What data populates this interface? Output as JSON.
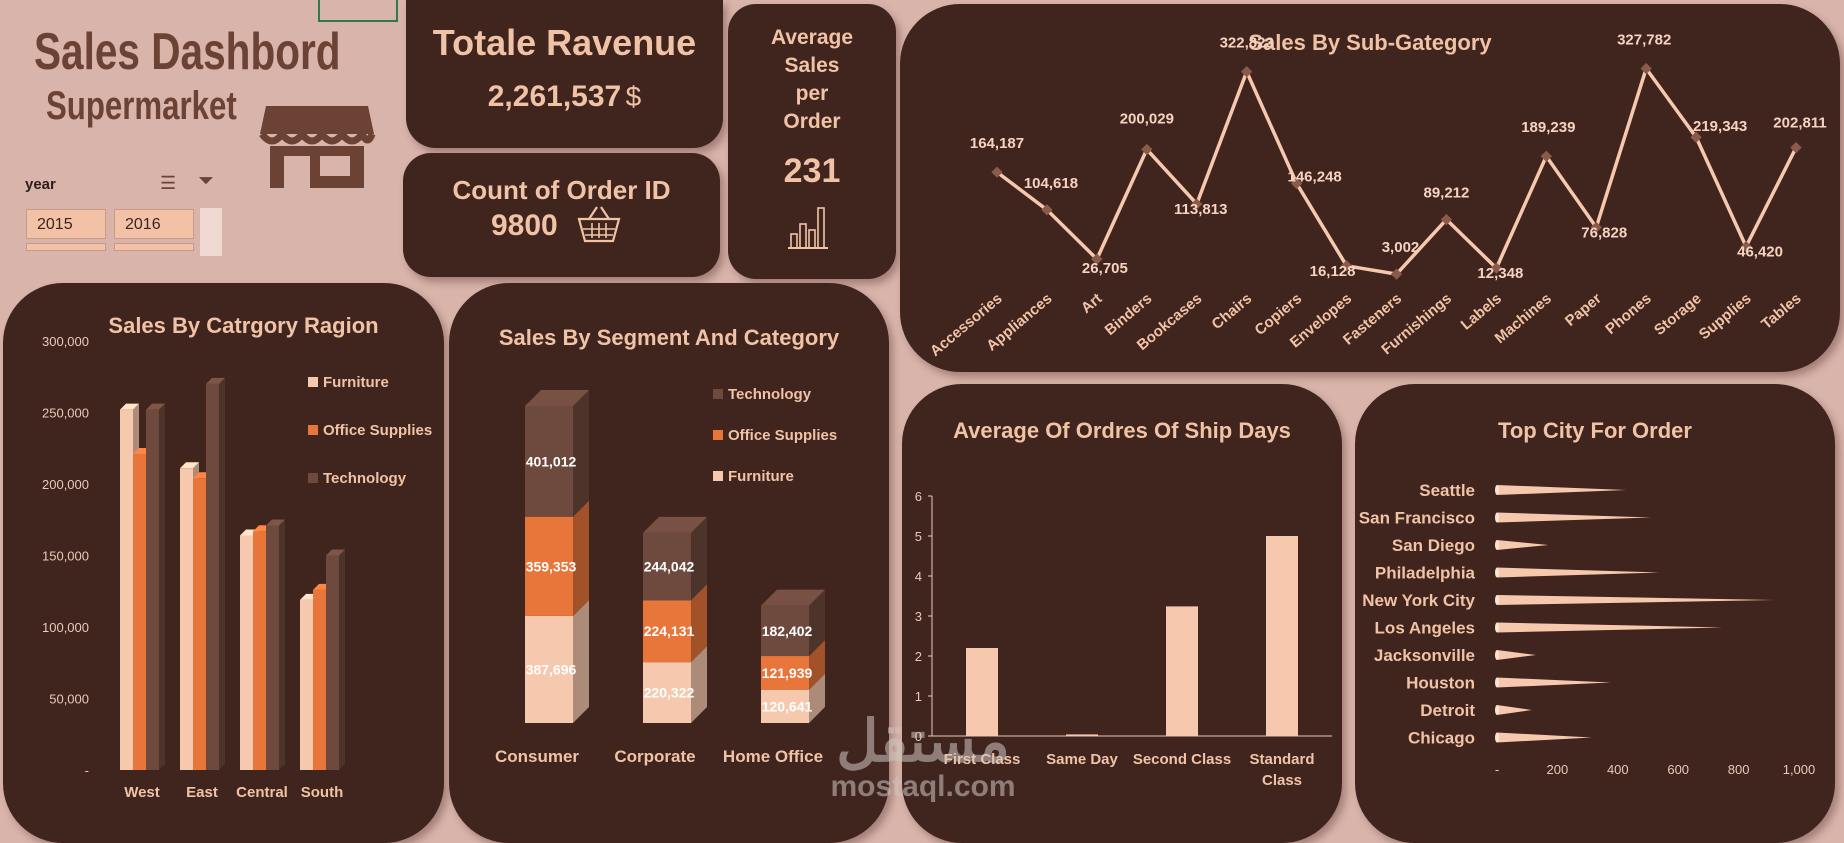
{
  "header": {
    "title": "Sales Dashbord",
    "subtitle": "Supermarket"
  },
  "slicer": {
    "label": "year",
    "buttons": [
      "2015",
      "2016"
    ]
  },
  "kpis": {
    "revenue": {
      "title": "Totale Ravenue",
      "value": "2,261,537",
      "unit": "$"
    },
    "orders": {
      "title": "Count of Order ID",
      "value": "9800"
    },
    "avg": {
      "title_lines": [
        "Average",
        "Sales",
        "per",
        "Order"
      ],
      "value": "231"
    }
  },
  "watermark": {
    "arabic": "مستقل",
    "latin": "mostaql.com"
  },
  "colors": {
    "furniture": "#f6c8ad",
    "office": "#e8753a",
    "technology": "#6e4a3e",
    "accent": "#f1c3a6",
    "card": "#40241e"
  },
  "chart_data": [
    {
      "id": "subcategory",
      "type": "line",
      "title": "Sales By Sub-Gategory",
      "categories": [
        "Accessories",
        "Appliances",
        "Art",
        "Binders",
        "Bookcases",
        "Chairs",
        "Copiers",
        "Envelopes",
        "Fasteners",
        "Furnishings",
        "Labels",
        "Machines",
        "Paper",
        "Phones",
        "Storage",
        "Supplies",
        "Tables"
      ],
      "values": [
        164187,
        104618,
        26705,
        200029,
        113813,
        322823,
        146248,
        16128,
        3002,
        89212,
        12348,
        189239,
        76828,
        327782,
        219343,
        46420,
        202811
      ],
      "labels": [
        "164,187",
        "104,618",
        "26,705",
        "200,029",
        "113,813",
        "322,823",
        "146,248",
        "16,128",
        "3,002",
        "89,212",
        "12,348",
        "189,239",
        "76,828",
        "327,782",
        "219,343",
        "46,420",
        "202,811"
      ]
    },
    {
      "id": "region",
      "type": "bar",
      "title": "Sales By Catrgory Ragion",
      "categories": [
        "West",
        "East",
        "Central",
        "South"
      ],
      "series": [
        {
          "name": "Furniture",
          "values": [
            252000,
            211000,
            164000,
            119000
          ]
        },
        {
          "name": "Office Supplies",
          "values": [
            221000,
            204000,
            167000,
            126000
          ]
        },
        {
          "name": "Technology",
          "values": [
            252000,
            270000,
            171000,
            150000
          ]
        }
      ],
      "ylim": [
        0,
        300000
      ],
      "yticks": [
        "-",
        "50,000",
        "100,000",
        "150,000",
        "200,000",
        "250,000",
        "300,000"
      ],
      "legend": "right"
    },
    {
      "id": "segment",
      "type": "bar",
      "title": "Sales By Segment And Category",
      "categories": [
        "Consumer",
        "Corporate",
        "Home Office"
      ],
      "series": [
        {
          "name": "Furniture",
          "values": [
            387696,
            220322,
            120641
          ],
          "labels": [
            "387,696",
            "220,322",
            "120,641"
          ]
        },
        {
          "name": "Office Supplies",
          "values": [
            359353,
            224131,
            121939
          ],
          "labels": [
            "359,353",
            "224,131",
            "121,939"
          ]
        },
        {
          "name": "Technology",
          "values": [
            401012,
            244042,
            182402
          ],
          "labels": [
            "401,012",
            "244,042",
            "182,402"
          ]
        }
      ],
      "legend_order": [
        "Technology",
        "Office Supplies",
        "Furniture"
      ],
      "stacked": true,
      "legend": "right"
    },
    {
      "id": "shipdays",
      "type": "bar",
      "title": "Average Of Ordres Of Ship Days",
      "categories": [
        "First Class",
        "Same Day",
        "Second Class",
        "Standard Class"
      ],
      "category_lines": [
        [
          "First Class"
        ],
        [
          "Same Day"
        ],
        [
          "Second Class"
        ],
        [
          "Standard",
          "Class"
        ]
      ],
      "values": [
        2.2,
        0.04,
        3.24,
        5.0
      ],
      "ylim": [
        0,
        6
      ],
      "yticks": [
        "0",
        "1",
        "2",
        "3",
        "4",
        "5",
        "6"
      ]
    },
    {
      "id": "city",
      "type": "bar",
      "orientation": "horizontal",
      "title": "Top City For Order",
      "categories": [
        "Seattle",
        "San Francisco",
        "San Diego",
        "Philadelphia",
        "New York City",
        "Los Angeles",
        "Jacksonville",
        "Houston",
        "Detroit",
        "Chicago"
      ],
      "values": [
        428,
        510,
        170,
        537,
        915,
        747,
        129,
        377,
        115,
        314
      ],
      "xlim": [
        0,
        1000
      ],
      "xticks": [
        "-",
        "200",
        "400",
        "600",
        "800",
        "1,000"
      ]
    }
  ]
}
